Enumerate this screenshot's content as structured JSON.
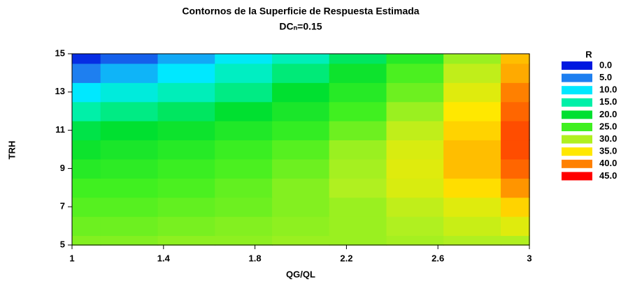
{
  "chart_data": {
    "type": "contour",
    "title": "Contornos de la Superficie de Respuesta Estimada",
    "subtitle": "DCₙ=0.15",
    "x_label": "QG/QL",
    "y_label": "TRH",
    "legend_title": "R",
    "xlim": [
      1,
      3
    ],
    "ylim": [
      5,
      15
    ],
    "xticks": [
      1,
      1.4,
      1.8,
      2.2,
      2.6,
      3
    ],
    "yticks": [
      5,
      7,
      9,
      11,
      13,
      15
    ],
    "x": [
      1,
      1.25,
      1.5,
      1.75,
      2,
      2.25,
      2.5,
      2.75,
      3
    ],
    "y": [
      5,
      6,
      7,
      8,
      9,
      10,
      11,
      12,
      13,
      14,
      15
    ],
    "z": [
      [
        28,
        28,
        28.5,
        28.5,
        29,
        29,
        29.5,
        30,
        30
      ],
      [
        27,
        27,
        27.5,
        28,
        28.5,
        29,
        30,
        31.5,
        33
      ],
      [
        26,
        26,
        26.5,
        27,
        28,
        29,
        31,
        33,
        36
      ],
      [
        25,
        25,
        25.5,
        26.5,
        28,
        30,
        32.5,
        35.5,
        39
      ],
      [
        23,
        23.5,
        24.5,
        25.5,
        27,
        29.5,
        33,
        37,
        41
      ],
      [
        21,
        22,
        23,
        24.5,
        26,
        29,
        32.5,
        37,
        42
      ],
      [
        19,
        20,
        21,
        22.5,
        24,
        27,
        31,
        36,
        42
      ],
      [
        15,
        16.5,
        18,
        20,
        22,
        25,
        29,
        35,
        41
      ],
      [
        10,
        12,
        14,
        16.5,
        20,
        23,
        27,
        33,
        40
      ],
      [
        5,
        7.5,
        10,
        13.5,
        17,
        21,
        25.5,
        31,
        38
      ],
      [
        1,
        3.5,
        7,
        10.5,
        14,
        18,
        23,
        29,
        37
      ]
    ],
    "levels": [
      {
        "value": 0,
        "label": "0.0"
      },
      {
        "value": 5,
        "label": "5.0"
      },
      {
        "value": 10,
        "label": "10.0"
      },
      {
        "value": 15,
        "label": "15.0"
      },
      {
        "value": 20,
        "label": "20.0"
      },
      {
        "value": 25,
        "label": "25.0"
      },
      {
        "value": 30,
        "label": "30.0"
      },
      {
        "value": 35,
        "label": "35.0"
      },
      {
        "value": 40,
        "label": "40.0"
      },
      {
        "value": 45,
        "label": "45.0"
      }
    ],
    "level_colors": [
      "#0018e0",
      "#1e7ff0",
      "#00e8ff",
      "#00f0a8",
      "#00e030",
      "#40f020",
      "#b0f020",
      "#ffe800",
      "#ff8000",
      "#ff0000"
    ]
  }
}
